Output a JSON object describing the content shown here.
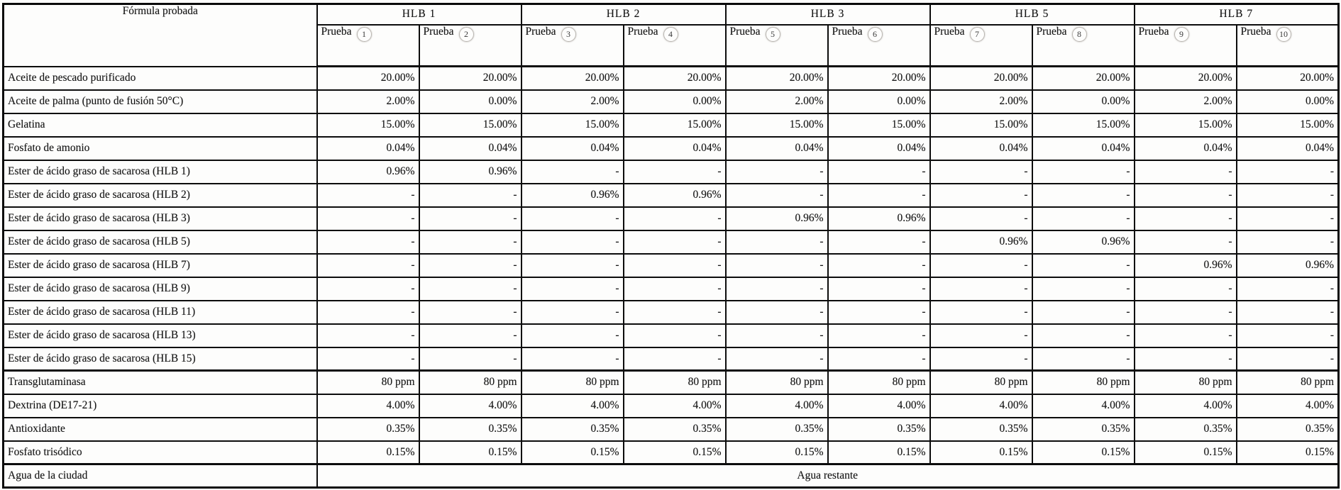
{
  "table": {
    "corner_label": "Fórmula probada",
    "groups": [
      {
        "label": "HLB 1"
      },
      {
        "label": "HLB 2"
      },
      {
        "label": "HLB 3"
      },
      {
        "label": "HLB 5"
      },
      {
        "label": "HLB 7"
      }
    ],
    "trials": [
      {
        "word": "Prueba",
        "num": "1"
      },
      {
        "word": "Prueba",
        "num": "2"
      },
      {
        "word": "Prueba",
        "num": "3"
      },
      {
        "word": "Prueba",
        "num": "4"
      },
      {
        "word": "Prueba",
        "num": "5"
      },
      {
        "word": "Prueba",
        "num": "6"
      },
      {
        "word": "Prueba",
        "num": "7"
      },
      {
        "word": "Prueba",
        "num": "8"
      },
      {
        "word": "Prueba",
        "num": "9"
      },
      {
        "word": "Prueba",
        "num": "10"
      }
    ],
    "rows": [
      {
        "label": "Aceite de pescado purificado",
        "values": [
          "20.00%",
          "20.00%",
          "20.00%",
          "20.00%",
          "20.00%",
          "20.00%",
          "20.00%",
          "20.00%",
          "20.00%",
          "20.00%"
        ]
      },
      {
        "label": "Aceite de palma (punto de fusión 50°C)",
        "values": [
          "2.00%",
          "0.00%",
          "2.00%",
          "0.00%",
          "2.00%",
          "0.00%",
          "2.00%",
          "0.00%",
          "2.00%",
          "0.00%"
        ]
      },
      {
        "label": "Gelatina",
        "values": [
          "15.00%",
          "15.00%",
          "15.00%",
          "15.00%",
          "15.00%",
          "15.00%",
          "15.00%",
          "15.00%",
          "15.00%",
          "15.00%"
        ]
      },
      {
        "label": "Fosfato de amonio",
        "values": [
          "0.04%",
          "0.04%",
          "0.04%",
          "0.04%",
          "0.04%",
          "0.04%",
          "0.04%",
          "0.04%",
          "0.04%",
          "0.04%"
        ]
      },
      {
        "label": "Ester de ácido graso de sacarosa (HLB 1)",
        "values": [
          "0.96%",
          "0.96%",
          "-",
          "-",
          "-",
          "-",
          "-",
          "-",
          "-",
          "-"
        ]
      },
      {
        "label": "Ester de ácido graso de sacarosa (HLB 2)",
        "values": [
          "-",
          "-",
          "0.96%",
          "0.96%",
          "-",
          "-",
          "-",
          "-",
          "-",
          "-"
        ]
      },
      {
        "label": "Ester de ácido graso de sacarosa (HLB 3)",
        "values": [
          "-",
          "-",
          "-",
          "-",
          "0.96%",
          "0.96%",
          "-",
          "-",
          "-",
          "-"
        ]
      },
      {
        "label": "Ester de ácido graso de sacarosa (HLB 5)",
        "values": [
          "-",
          "-",
          "-",
          "-",
          "-",
          "-",
          "0.96%",
          "0.96%",
          "-",
          "-"
        ]
      },
      {
        "label": "Ester de ácido graso de sacarosa (HLB 7)",
        "values": [
          "-",
          "-",
          "-",
          "-",
          "-",
          "-",
          "-",
          "-",
          "0.96%",
          "0.96%"
        ]
      },
      {
        "label": "Ester de ácido graso de sacarosa (HLB 9)",
        "values": [
          "-",
          "-",
          "-",
          "-",
          "-",
          "-",
          "-",
          "-",
          "-",
          "-"
        ]
      },
      {
        "label": "Ester de ácido graso de sacarosa (HLB 11)",
        "values": [
          "-",
          "-",
          "-",
          "-",
          "-",
          "-",
          "-",
          "-",
          "-",
          "-"
        ]
      },
      {
        "label": "Ester de ácido graso de sacarosa (HLB 13)",
        "values": [
          "-",
          "-",
          "-",
          "-",
          "-",
          "-",
          "-",
          "-",
          "-",
          "-"
        ]
      },
      {
        "label": "Ester de ácido graso de sacarosa (HLB 15)",
        "values": [
          "-",
          "-",
          "-",
          "-",
          "-",
          "-",
          "-",
          "-",
          "-",
          "-"
        ]
      },
      {
        "label": "Transglutaminasa",
        "sep": true,
        "values": [
          "80 ppm",
          "80 ppm",
          "80 ppm",
          "80 ppm",
          "80 ppm",
          "80 ppm",
          "80 ppm",
          "80 ppm",
          "80 ppm",
          "80 ppm"
        ]
      },
      {
        "label": "Dextrina (DE17-21)",
        "values": [
          "4.00%",
          "4.00%",
          "4.00%",
          "4.00%",
          "4.00%",
          "4.00%",
          "4.00%",
          "4.00%",
          "4.00%",
          "4.00%"
        ]
      },
      {
        "label": "Antioxidante",
        "values": [
          "0.35%",
          "0.35%",
          "0.35%",
          "0.35%",
          "0.35%",
          "0.35%",
          "0.35%",
          "0.35%",
          "0.35%",
          "0.35%"
        ]
      },
      {
        "label": "Fosfato trisódico",
        "values": [
          "0.15%",
          "0.15%",
          "0.15%",
          "0.15%",
          "0.15%",
          "0.15%",
          "0.15%",
          "0.15%",
          "0.15%",
          "0.15%"
        ]
      },
      {
        "label": "Agua de la ciudad",
        "sep": true,
        "span_value": "Agua restante"
      }
    ],
    "colors": {
      "border": "#0c0c0c",
      "text": "#161616",
      "background": "#fdfdfc",
      "circle_border": "#b9b5b0"
    }
  }
}
